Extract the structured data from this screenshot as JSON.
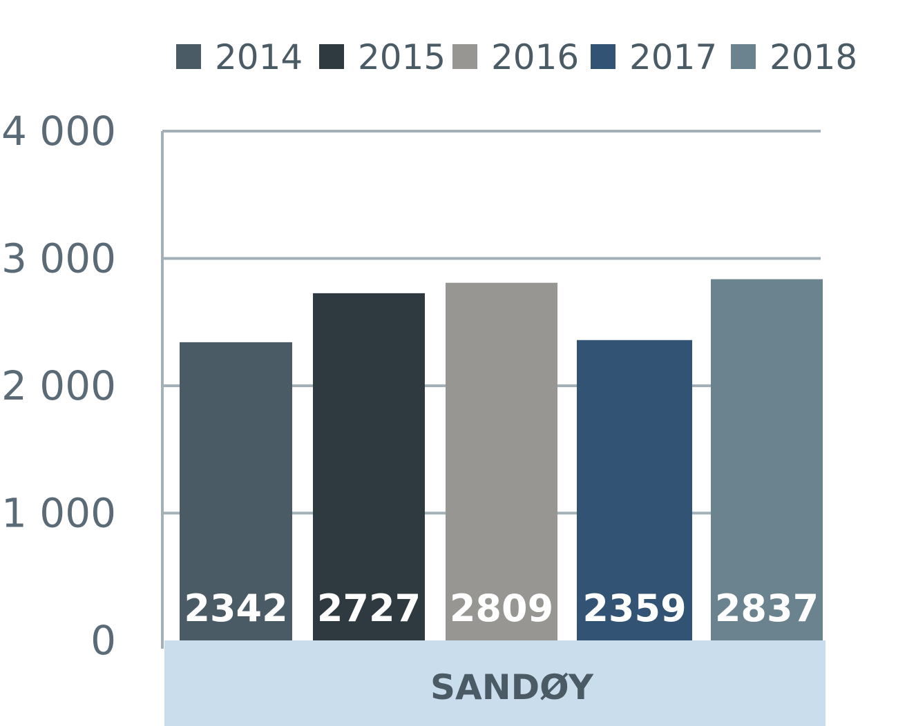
{
  "chart_data": {
    "type": "bar",
    "categories": [
      "SANDØY"
    ],
    "series": [
      {
        "name": "2014",
        "values": [
          2342
        ],
        "color": "#4a5b66"
      },
      {
        "name": "2015",
        "values": [
          2727
        ],
        "color": "#2e3a40"
      },
      {
        "name": "2016",
        "values": [
          2809
        ],
        "color": "#979692"
      },
      {
        "name": "2017",
        "values": [
          2359
        ],
        "color": "#335375"
      },
      {
        "name": "2018",
        "values": [
          2837
        ],
        "color": "#6b828f"
      }
    ],
    "value_labels": [
      "2342",
      "2727",
      "2809",
      "2359",
      "2837"
    ],
    "y_ticks": [
      {
        "value": 0,
        "label": "0"
      },
      {
        "value": 1000,
        "label": "1 000"
      },
      {
        "value": 2000,
        "label": "2 000"
      },
      {
        "value": 3000,
        "label": "3 000"
      },
      {
        "value": 4000,
        "label": "4 000"
      }
    ],
    "ylim": [
      0,
      4000
    ],
    "grid": true,
    "legend_position": "top",
    "category_band_color": "#c9dded",
    "gridline_color": "#a3b0b8"
  }
}
